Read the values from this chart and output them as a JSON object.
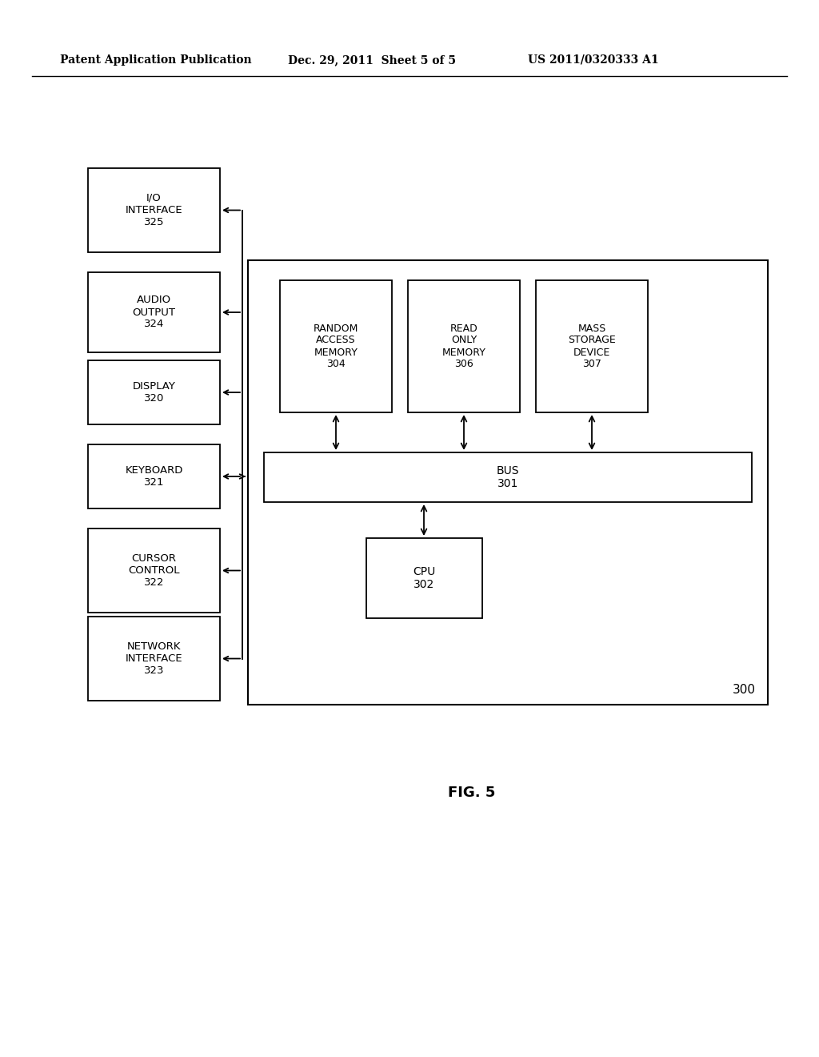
{
  "bg_color": "#ffffff",
  "header_left": "Patent Application Publication",
  "header_mid": "Dec. 29, 2011  Sheet 5 of 5",
  "header_right": "US 2011/0320333 A1",
  "fig_label": "FIG. 5",
  "system_box_label": "300",
  "left_boxes": [
    {
      "label": "I/O\nINTERFACE\n325"
    },
    {
      "label": "AUDIO\nOUTPUT\n324"
    },
    {
      "label": "DISPLAY\n320"
    },
    {
      "label": "KEYBOARD\n321"
    },
    {
      "label": "CURSOR\nCONTROL\n322"
    },
    {
      "label": "NETWORK\nINTERFACE\n323"
    }
  ],
  "memory_labels": [
    "RANDOM\nACCESS\nMEMORY\n304",
    "READ\nONLY\nMEMORY\n306",
    "MASS\nSTORAGE\nDEVICE\n307"
  ],
  "bus_label": "BUS\n301",
  "cpu_label": "CPU\n302"
}
